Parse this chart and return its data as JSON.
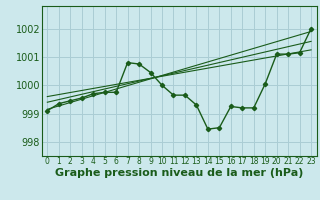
{
  "xlabel": "Graphe pression niveau de la mer (hPa)",
  "background_color": "#cce8ec",
  "grid_color": "#aacdd4",
  "line_color": "#1a5c1a",
  "text_color": "#1a5c1a",
  "ylim": [
    997.5,
    1002.8
  ],
  "xlim": [
    -0.5,
    23.5
  ],
  "yticks": [
    998,
    999,
    1000,
    1001,
    1002
  ],
  "xticks": [
    0,
    1,
    2,
    3,
    4,
    5,
    6,
    7,
    8,
    9,
    10,
    11,
    12,
    13,
    14,
    15,
    16,
    17,
    18,
    19,
    20,
    21,
    22,
    23
  ],
  "main_series": [
    [
      0,
      999.1
    ],
    [
      1,
      999.35
    ],
    [
      2,
      999.45
    ],
    [
      3,
      999.55
    ],
    [
      4,
      999.7
    ],
    [
      5,
      999.75
    ],
    [
      6,
      999.75
    ],
    [
      7,
      1000.8
    ],
    [
      8,
      1000.75
    ],
    [
      9,
      1000.45
    ],
    [
      10,
      1000.0
    ],
    [
      11,
      999.65
    ],
    [
      12,
      999.65
    ],
    [
      13,
      999.3
    ],
    [
      14,
      998.45
    ],
    [
      15,
      998.5
    ],
    [
      16,
      999.25
    ],
    [
      17,
      999.2
    ],
    [
      18,
      999.2
    ],
    [
      19,
      1000.05
    ],
    [
      20,
      1001.1
    ],
    [
      21,
      1001.1
    ],
    [
      22,
      1001.15
    ],
    [
      23,
      1002.0
    ]
  ],
  "trend_lines": [
    [
      [
        0,
        999.15
      ],
      [
        23,
        1001.9
      ]
    ],
    [
      [
        0,
        999.4
      ],
      [
        23,
        1001.55
      ]
    ],
    [
      [
        0,
        999.6
      ],
      [
        23,
        1001.25
      ]
    ]
  ],
  "font_size_xlabel": 8,
  "font_size_yticks": 7,
  "font_size_xticks": 5.5
}
